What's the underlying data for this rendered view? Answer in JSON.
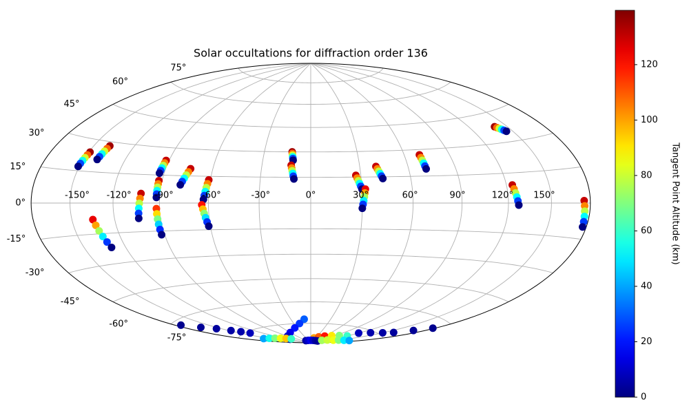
{
  "chart_data": {
    "type": "scatter",
    "projection": "hammer",
    "title": "Solar occultations for diffraction order 136",
    "grid": true,
    "colormap": "jet",
    "colorbar": {
      "label": "Tangent Point Altitude (km)",
      "lim": [
        0,
        139.6
      ],
      "ticks": [
        0,
        20,
        40,
        60,
        80,
        100,
        120
      ]
    },
    "xticks": [
      {
        "value": -150,
        "label": "-150°"
      },
      {
        "value": -120,
        "label": "-120°"
      },
      {
        "value": -90,
        "label": "-90°"
      },
      {
        "value": -60,
        "label": "-60°"
      },
      {
        "value": -30,
        "label": "-30°"
      },
      {
        "value": 0,
        "label": "0°"
      },
      {
        "value": 30,
        "label": "30°"
      },
      {
        "value": 60,
        "label": "60°"
      },
      {
        "value": 90,
        "label": "90°"
      },
      {
        "value": 120,
        "label": "120°"
      },
      {
        "value": 150,
        "label": "150°"
      }
    ],
    "yticks": [
      {
        "value": -75,
        "label": "-75°"
      },
      {
        "value": -60,
        "label": "-60°"
      },
      {
        "value": -45,
        "label": "-45°"
      },
      {
        "value": -30,
        "label": "-30°"
      },
      {
        "value": -15,
        "label": "-15°"
      },
      {
        "value": 0,
        "label": "0°"
      },
      {
        "value": 15,
        "label": "15°"
      },
      {
        "value": 30,
        "label": "30°"
      },
      {
        "value": 45,
        "label": "45°"
      },
      {
        "value": 60,
        "label": "60°"
      },
      {
        "value": 75,
        "label": "75°"
      }
    ],
    "series": [
      {
        "x": [
          -149,
          -149.4,
          -149.8,
          -150.2,
          -150.6,
          -151
        ],
        "y": [
          24,
          22.6,
          21.2,
          19.8,
          18.4,
          17
        ],
        "values": [
          135,
          108,
          81,
          54,
          27,
          0
        ]
      },
      {
        "x": [
          -138,
          -138.4,
          -138.8,
          -139.2,
          -139.6,
          -140
        ],
        "y": [
          28,
          26.6,
          25.2,
          23.8,
          22.4,
          21
        ],
        "values": [
          135,
          108,
          81,
          54,
          27,
          0
        ]
      },
      {
        "x": [
          -102,
          -102.4,
          -102.8,
          -103.2,
          -103.6,
          -104
        ],
        "y": [
          5,
          2.4,
          -0.2,
          -2.8,
          -5.4,
          -8
        ],
        "values": [
          130,
          104,
          78,
          52,
          26,
          0
        ]
      },
      {
        "x": [
          -92,
          -92.2,
          -92.4,
          -92.6,
          -92.8,
          -93
        ],
        "y": [
          23,
          21.6,
          20.2,
          18.8,
          17.4,
          16
        ],
        "values": [
          130,
          104,
          78,
          52,
          26,
          0
        ]
      },
      {
        "x": [
          -92,
          -92,
          -92,
          -92,
          -92,
          -92
        ],
        "y": [
          12,
          10.2,
          8.4,
          6.6,
          4.8,
          3
        ],
        "values": [
          130,
          104,
          78,
          52,
          26,
          0
        ]
      },
      {
        "x": [
          -92,
          -92,
          -92,
          -92,
          -92,
          -92
        ],
        "y": [
          -3,
          -5.8,
          -8.6,
          -11.4,
          -14.2,
          -17
        ],
        "values": [
          115,
          92,
          69,
          46,
          23,
          0
        ]
      },
      {
        "x": [
          -74,
          -74.8,
          -75.6,
          -76.4,
          -77.2,
          -78
        ],
        "y": [
          19,
          17.2,
          15.4,
          13.6,
          11.8,
          10
        ],
        "values": [
          130,
          104,
          78,
          52,
          26,
          0
        ]
      },
      {
        "x": [
          -61,
          -61.4,
          -61.8,
          -62.2,
          -62.6,
          -63
        ],
        "y": [
          13,
          10.8,
          8.6,
          6.4,
          4.2,
          2
        ],
        "values": [
          130,
          104,
          78,
          52,
          26,
          0
        ]
      },
      {
        "x": [
          -64,
          -63.4,
          -62.8,
          -62.2,
          -61.6,
          -61
        ],
        "y": [
          -1,
          -3.4,
          -5.8,
          -8.2,
          -10.6,
          -13
        ],
        "values": [
          120,
          96,
          72,
          48,
          24,
          0
        ]
      },
      {
        "x": [
          -135,
          -134,
          -133,
          -132,
          -131,
          -130
        ],
        "y": [
          -8,
          -10.8,
          -13.6,
          -16.4,
          -19.2,
          -22
        ],
        "values": [
          125,
          100,
          75,
          50,
          25,
          0
        ]
      },
      {
        "x": [
          -12,
          -11.8,
          -11.6,
          -11.4,
          -11.2,
          -11
        ],
        "y": [
          30,
          29,
          28,
          27,
          26,
          25
        ],
        "values": [
          135,
          108,
          81,
          54,
          27,
          0
        ]
      },
      {
        "x": [
          -12,
          -11.6,
          -11.2,
          -10.8,
          -10.4,
          -10
        ],
        "y": [
          22,
          20.4,
          18.8,
          17.2,
          15.6,
          14
        ],
        "values": [
          130,
          104,
          78,
          52,
          26,
          0
        ]
      },
      {
        "x": [
          27,
          27.6,
          28.2,
          28.8,
          29.4,
          30
        ],
        "y": [
          16,
          14.4,
          12.8,
          11.2,
          9.6,
          8
        ],
        "values": [
          130,
          104,
          78,
          52,
          26,
          0
        ]
      },
      {
        "x": [
          32,
          31.6,
          31.2,
          30.8,
          30.4,
          30
        ],
        "y": [
          8,
          5.8,
          3.6,
          1.4,
          -0.8,
          -3
        ],
        "values": [
          125,
          100,
          75,
          50,
          25,
          0
        ]
      },
      {
        "x": [
          40,
          40.6,
          41.2,
          41.8,
          42.4,
          43
        ],
        "y": [
          21,
          19.6,
          18.2,
          16.8,
          15.4,
          14
        ],
        "values": [
          130,
          104,
          78,
          52,
          26,
          0
        ]
      },
      {
        "x": [
          70,
          70.2,
          70.4,
          70.6,
          70.8,
          71
        ],
        "y": [
          27,
          25.4,
          23.8,
          22.2,
          20.6,
          19
        ],
        "values": [
          130,
          104,
          78,
          52,
          26,
          0
        ]
      },
      {
        "x": [
          140,
          141,
          142,
          143,
          144,
          145
        ],
        "y": [
          38,
          37.4,
          36.8,
          36.2,
          35.6,
          35
        ],
        "values": [
          135,
          108,
          81,
          54,
          27,
          0
        ]
      },
      {
        "x": [
          124,
          124.6,
          125.2,
          125.8,
          126.4,
          127
        ],
        "y": [
          9,
          7,
          5,
          3,
          1,
          -1
        ],
        "values": [
          130,
          104,
          78,
          52,
          26,
          0
        ]
      },
      {
        "x": [
          175,
          175.4,
          175.8,
          176.2,
          176.6,
          177
        ],
        "y": [
          1,
          -1.2,
          -3.4,
          -5.6,
          -7.8,
          -10
        ],
        "values": [
          130,
          104,
          78,
          52,
          26,
          0
        ]
      },
      {
        "x": [
          -175,
          -165,
          -155,
          -148,
          -142,
          -138
        ],
        "y": [
          -62,
          -66,
          -69,
          -72,
          -74,
          -76
        ],
        "values": [
          2,
          3,
          4,
          5,
          6,
          8
        ]
      },
      {
        "x": [
          -10,
          -20,
          -35,
          -60,
          -90,
          -120
        ],
        "y": [
          -72,
          -75,
          -78,
          -81,
          -83,
          -85
        ],
        "values": [
          30,
          25,
          20,
          15,
          10,
          5
        ]
      },
      {
        "x": [
          -160,
          -150,
          -140,
          -130,
          -120,
          -110
        ],
        "y": [
          -80,
          -81,
          -82,
          -83,
          -84,
          -85
        ],
        "values": [
          40,
          55,
          70,
          85,
          95,
          60
        ]
      },
      {
        "x": [
          20,
          40,
          60,
          80,
          100,
          120
        ],
        "y": [
          -86,
          -85,
          -84,
          -83,
          -82,
          -81
        ],
        "values": [
          100,
          110,
          120,
          90,
          70,
          60
        ]
      },
      {
        "x": [
          120,
          135,
          150,
          160,
          170,
          178
        ],
        "y": [
          -78,
          -76,
          -74,
          -72,
          -68,
          -64
        ],
        "values": [
          8,
          6,
          5,
          4,
          3,
          2
        ]
      },
      {
        "x": [
          -60,
          -30,
          0,
          30,
          60,
          90
        ],
        "y": [
          -88,
          -88,
          -88,
          -88,
          -88,
          -88
        ],
        "values": [
          5,
          10,
          15,
          10,
          5,
          3
        ]
      },
      {
        "x": [
          100,
          120,
          140,
          150,
          160,
          170
        ],
        "y": [
          -87,
          -86,
          -85,
          -84,
          -83,
          -82
        ],
        "values": [
          75,
          80,
          85,
          70,
          50,
          40
        ]
      }
    ]
  }
}
